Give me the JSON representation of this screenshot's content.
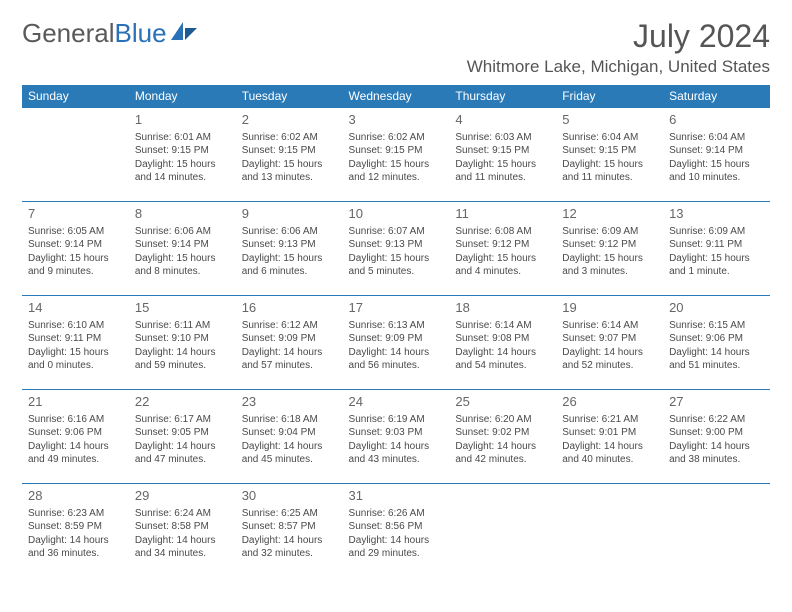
{
  "brand": {
    "part1": "General",
    "part2": "Blue"
  },
  "title": "July 2024",
  "location": "Whitmore Lake, Michigan, United States",
  "colors": {
    "header_bg": "#2a7ab8",
    "header_text": "#ffffff",
    "rule": "#2a7ab8",
    "body_text": "#4a4a4a"
  },
  "weekdays": [
    "Sunday",
    "Monday",
    "Tuesday",
    "Wednesday",
    "Thursday",
    "Friday",
    "Saturday"
  ],
  "weeks": [
    [
      null,
      {
        "n": "1",
        "sr": "Sunrise: 6:01 AM",
        "ss": "Sunset: 9:15 PM",
        "d1": "Daylight: 15 hours",
        "d2": "and 14 minutes."
      },
      {
        "n": "2",
        "sr": "Sunrise: 6:02 AM",
        "ss": "Sunset: 9:15 PM",
        "d1": "Daylight: 15 hours",
        "d2": "and 13 minutes."
      },
      {
        "n": "3",
        "sr": "Sunrise: 6:02 AM",
        "ss": "Sunset: 9:15 PM",
        "d1": "Daylight: 15 hours",
        "d2": "and 12 minutes."
      },
      {
        "n": "4",
        "sr": "Sunrise: 6:03 AM",
        "ss": "Sunset: 9:15 PM",
        "d1": "Daylight: 15 hours",
        "d2": "and 11 minutes."
      },
      {
        "n": "5",
        "sr": "Sunrise: 6:04 AM",
        "ss": "Sunset: 9:15 PM",
        "d1": "Daylight: 15 hours",
        "d2": "and 11 minutes."
      },
      {
        "n": "6",
        "sr": "Sunrise: 6:04 AM",
        "ss": "Sunset: 9:14 PM",
        "d1": "Daylight: 15 hours",
        "d2": "and 10 minutes."
      }
    ],
    [
      {
        "n": "7",
        "sr": "Sunrise: 6:05 AM",
        "ss": "Sunset: 9:14 PM",
        "d1": "Daylight: 15 hours",
        "d2": "and 9 minutes."
      },
      {
        "n": "8",
        "sr": "Sunrise: 6:06 AM",
        "ss": "Sunset: 9:14 PM",
        "d1": "Daylight: 15 hours",
        "d2": "and 8 minutes."
      },
      {
        "n": "9",
        "sr": "Sunrise: 6:06 AM",
        "ss": "Sunset: 9:13 PM",
        "d1": "Daylight: 15 hours",
        "d2": "and 6 minutes."
      },
      {
        "n": "10",
        "sr": "Sunrise: 6:07 AM",
        "ss": "Sunset: 9:13 PM",
        "d1": "Daylight: 15 hours",
        "d2": "and 5 minutes."
      },
      {
        "n": "11",
        "sr": "Sunrise: 6:08 AM",
        "ss": "Sunset: 9:12 PM",
        "d1": "Daylight: 15 hours",
        "d2": "and 4 minutes."
      },
      {
        "n": "12",
        "sr": "Sunrise: 6:09 AM",
        "ss": "Sunset: 9:12 PM",
        "d1": "Daylight: 15 hours",
        "d2": "and 3 minutes."
      },
      {
        "n": "13",
        "sr": "Sunrise: 6:09 AM",
        "ss": "Sunset: 9:11 PM",
        "d1": "Daylight: 15 hours",
        "d2": "and 1 minute."
      }
    ],
    [
      {
        "n": "14",
        "sr": "Sunrise: 6:10 AM",
        "ss": "Sunset: 9:11 PM",
        "d1": "Daylight: 15 hours",
        "d2": "and 0 minutes."
      },
      {
        "n": "15",
        "sr": "Sunrise: 6:11 AM",
        "ss": "Sunset: 9:10 PM",
        "d1": "Daylight: 14 hours",
        "d2": "and 59 minutes."
      },
      {
        "n": "16",
        "sr": "Sunrise: 6:12 AM",
        "ss": "Sunset: 9:09 PM",
        "d1": "Daylight: 14 hours",
        "d2": "and 57 minutes."
      },
      {
        "n": "17",
        "sr": "Sunrise: 6:13 AM",
        "ss": "Sunset: 9:09 PM",
        "d1": "Daylight: 14 hours",
        "d2": "and 56 minutes."
      },
      {
        "n": "18",
        "sr": "Sunrise: 6:14 AM",
        "ss": "Sunset: 9:08 PM",
        "d1": "Daylight: 14 hours",
        "d2": "and 54 minutes."
      },
      {
        "n": "19",
        "sr": "Sunrise: 6:14 AM",
        "ss": "Sunset: 9:07 PM",
        "d1": "Daylight: 14 hours",
        "d2": "and 52 minutes."
      },
      {
        "n": "20",
        "sr": "Sunrise: 6:15 AM",
        "ss": "Sunset: 9:06 PM",
        "d1": "Daylight: 14 hours",
        "d2": "and 51 minutes."
      }
    ],
    [
      {
        "n": "21",
        "sr": "Sunrise: 6:16 AM",
        "ss": "Sunset: 9:06 PM",
        "d1": "Daylight: 14 hours",
        "d2": "and 49 minutes."
      },
      {
        "n": "22",
        "sr": "Sunrise: 6:17 AM",
        "ss": "Sunset: 9:05 PM",
        "d1": "Daylight: 14 hours",
        "d2": "and 47 minutes."
      },
      {
        "n": "23",
        "sr": "Sunrise: 6:18 AM",
        "ss": "Sunset: 9:04 PM",
        "d1": "Daylight: 14 hours",
        "d2": "and 45 minutes."
      },
      {
        "n": "24",
        "sr": "Sunrise: 6:19 AM",
        "ss": "Sunset: 9:03 PM",
        "d1": "Daylight: 14 hours",
        "d2": "and 43 minutes."
      },
      {
        "n": "25",
        "sr": "Sunrise: 6:20 AM",
        "ss": "Sunset: 9:02 PM",
        "d1": "Daylight: 14 hours",
        "d2": "and 42 minutes."
      },
      {
        "n": "26",
        "sr": "Sunrise: 6:21 AM",
        "ss": "Sunset: 9:01 PM",
        "d1": "Daylight: 14 hours",
        "d2": "and 40 minutes."
      },
      {
        "n": "27",
        "sr": "Sunrise: 6:22 AM",
        "ss": "Sunset: 9:00 PM",
        "d1": "Daylight: 14 hours",
        "d2": "and 38 minutes."
      }
    ],
    [
      {
        "n": "28",
        "sr": "Sunrise: 6:23 AM",
        "ss": "Sunset: 8:59 PM",
        "d1": "Daylight: 14 hours",
        "d2": "and 36 minutes."
      },
      {
        "n": "29",
        "sr": "Sunrise: 6:24 AM",
        "ss": "Sunset: 8:58 PM",
        "d1": "Daylight: 14 hours",
        "d2": "and 34 minutes."
      },
      {
        "n": "30",
        "sr": "Sunrise: 6:25 AM",
        "ss": "Sunset: 8:57 PM",
        "d1": "Daylight: 14 hours",
        "d2": "and 32 minutes."
      },
      {
        "n": "31",
        "sr": "Sunrise: 6:26 AM",
        "ss": "Sunset: 8:56 PM",
        "d1": "Daylight: 14 hours",
        "d2": "and 29 minutes."
      },
      null,
      null,
      null
    ]
  ]
}
